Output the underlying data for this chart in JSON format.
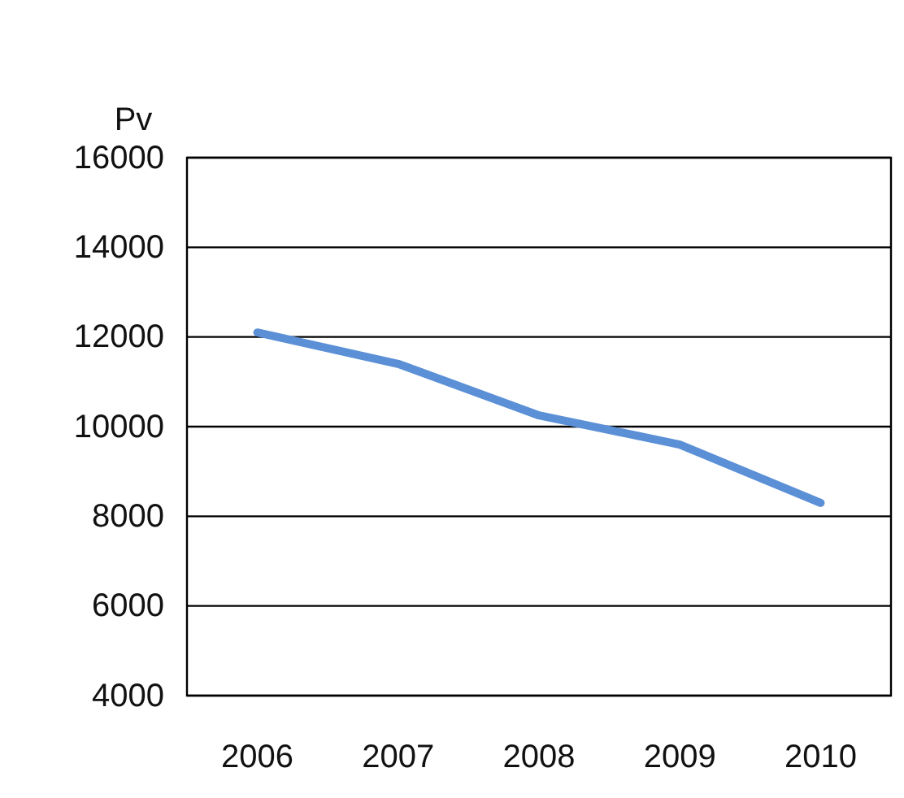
{
  "chart_data": {
    "type": "line",
    "ylabel": "Pv",
    "categories": [
      "2006",
      "2007",
      "2008",
      "2009",
      "2010"
    ],
    "series": [
      {
        "color": "#5b8fd6",
        "values": [
          12100,
          11400,
          10250,
          9600,
          8300
        ]
      }
    ],
    "ylim": [
      4000,
      16000
    ],
    "yticks": [
      4000,
      6000,
      8000,
      10000,
      12000,
      14000,
      16000
    ],
    "grid": "y",
    "marker": "none",
    "line_style": "solid"
  }
}
